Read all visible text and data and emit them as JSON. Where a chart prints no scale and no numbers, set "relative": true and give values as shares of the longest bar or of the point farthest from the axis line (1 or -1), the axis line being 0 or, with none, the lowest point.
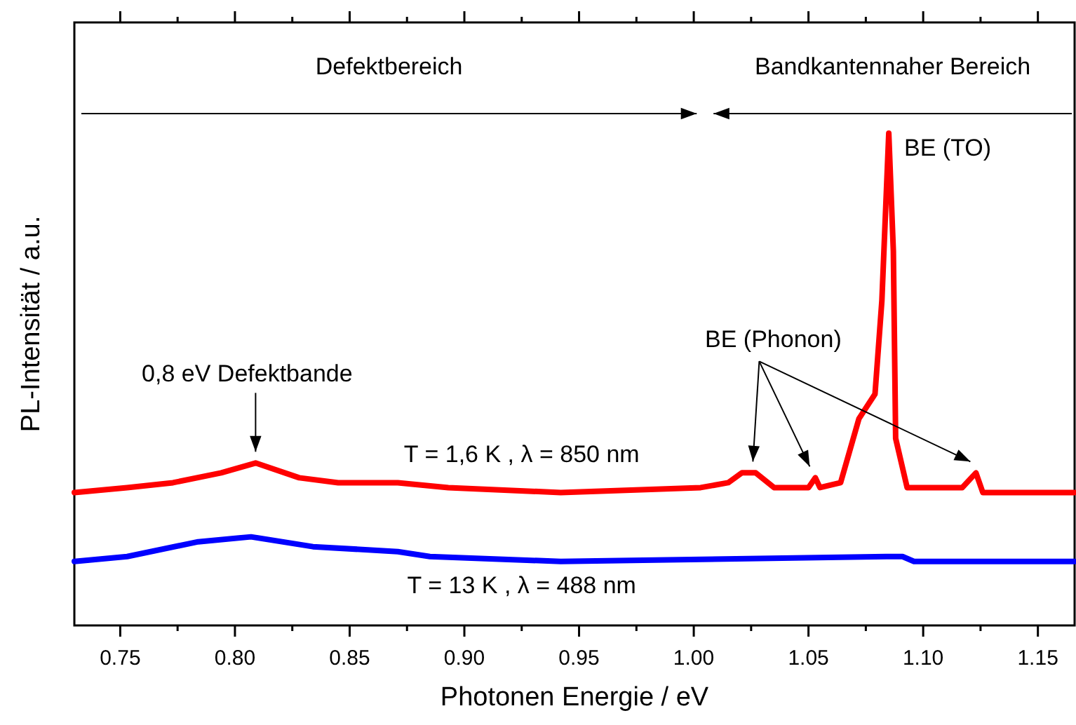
{
  "chart_data": {
    "type": "line",
    "relative": true,
    "xlabel": "Photonen Energie / eV",
    "ylabel": "PL-Intensität / a.u.",
    "xlim": [
      0.73,
      1.166
    ],
    "xticks": [
      {
        "value": 0.75,
        "label": "0.75"
      },
      {
        "value": 0.775,
        "label": null
      },
      {
        "value": 0.8,
        "label": "0.80"
      },
      {
        "value": 0.825,
        "label": null
      },
      {
        "value": 0.85,
        "label": "0.85"
      },
      {
        "value": 0.875,
        "label": null
      },
      {
        "value": 0.9,
        "label": "0.90"
      },
      {
        "value": 0.925,
        "label": null
      },
      {
        "value": 0.95,
        "label": "0.95"
      },
      {
        "value": 0.975,
        "label": null
      },
      {
        "value": 1.0,
        "label": "1.00"
      },
      {
        "value": 1.025,
        "label": null
      },
      {
        "value": 1.05,
        "label": "1.05"
      },
      {
        "value": 1.075,
        "label": null
      },
      {
        "value": 1.1,
        "label": "1.10"
      },
      {
        "value": 1.125,
        "label": null
      },
      {
        "value": 1.15,
        "label": "1.15"
      }
    ],
    "marker": "none",
    "line_style": "solid",
    "series": [
      {
        "name": "T = 1,6 K , λ = 850 nm",
        "color": "#ff0000",
        "x": [
          0.73,
          0.753,
          0.773,
          0.794,
          0.809,
          0.828,
          0.845,
          0.871,
          0.893,
          0.942,
          1.003,
          1.015,
          1.021,
          1.027,
          1.035,
          1.05,
          1.053,
          1.055,
          1.064,
          1.072,
          1.079,
          1.082,
          1.085,
          1.087,
          1.088,
          1.093,
          1.117,
          1.123,
          1.126,
          1.141,
          1.166
        ],
        "values": [
          0.27,
          0.28,
          0.29,
          0.31,
          0.33,
          0.3,
          0.29,
          0.29,
          0.28,
          0.27,
          0.28,
          0.29,
          0.31,
          0.31,
          0.28,
          0.28,
          0.3,
          0.28,
          0.29,
          0.42,
          0.47,
          0.66,
          1.0,
          0.76,
          0.38,
          0.28,
          0.28,
          0.31,
          0.27,
          0.27,
          0.27
        ]
      },
      {
        "name": "T = 13 K , λ = 488 nm",
        "color": "#0000ff",
        "x": [
          0.73,
          0.753,
          0.784,
          0.807,
          0.834,
          0.871,
          0.885,
          0.942,
          1.084,
          1.091,
          1.096,
          1.166
        ],
        "values": [
          0.13,
          0.14,
          0.17,
          0.18,
          0.16,
          0.15,
          0.14,
          0.13,
          0.14,
          0.14,
          0.13,
          0.13
        ]
      }
    ],
    "annotations": [
      {
        "text": "0,8 eV Defektbande",
        "x": 0.809,
        "y": 0.33
      },
      {
        "text": "BE (Phonon)",
        "x": 1.053,
        "y": 0.3
      },
      {
        "text": "BE (TO)",
        "x": 1.085,
        "y": 1.0
      },
      "Defektbereich",
      "Bandkantennaher Bereich"
    ]
  }
}
